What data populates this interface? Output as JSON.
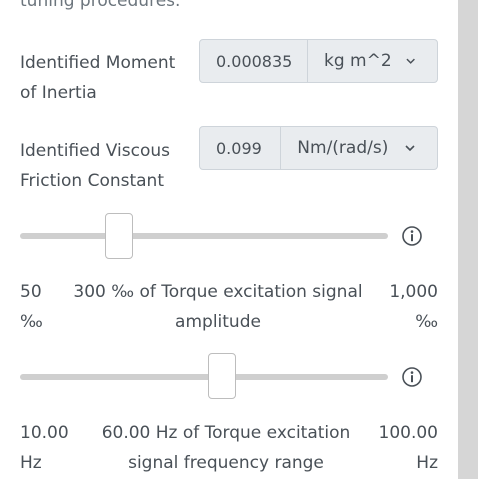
{
  "intro_text": "tuning procedures.",
  "inertia": {
    "label": "Identified Moment of Inertia",
    "value": "0.000835",
    "unit": "kg m^2"
  },
  "friction": {
    "label": "Identified Viscous Friction Constant",
    "value": "0.099",
    "unit": "Nm/(rad/s)"
  },
  "amplitude_slider": {
    "level_fraction": 0.27,
    "min_label": "50 ‰",
    "max_label": "1,000 ‰",
    "caption": "300 ‰ of Torque excitation signal amplitude"
  },
  "frequency_slider": {
    "level_fraction": 0.55,
    "min_label": "10.00 Hz",
    "max_label": "100.00 Hz",
    "caption": "60.00 Hz of Torque excitation signal frequency range"
  },
  "icons": {
    "info": "info-circle-icon",
    "dropdown": "chevron-down-icon"
  },
  "colors": {
    "input_bg": "#e9ecef",
    "track": "#cfcfcf",
    "scrollbar": "#d6d6d6"
  }
}
